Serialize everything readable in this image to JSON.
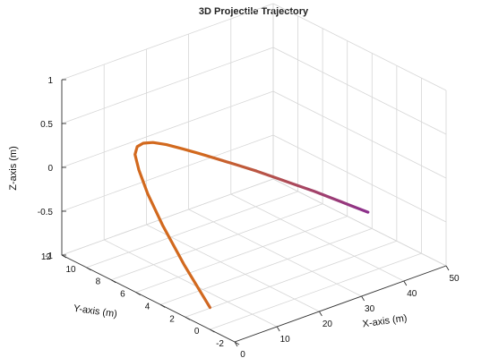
{
  "chart_data": {
    "type": "line3d",
    "title": "3D Projectile Trajectory",
    "xlabel": "X-axis (m)",
    "ylabel": "Y-axis (m)",
    "zlabel": "Z-axis (m)",
    "xlim": [
      0,
      50
    ],
    "ylim": [
      -2,
      12
    ],
    "zlim": [
      -1,
      1
    ],
    "xticks": [
      "0",
      "10",
      "20",
      "30",
      "40",
      "50"
    ],
    "yticks": [
      "-2",
      "0",
      "2",
      "4",
      "6",
      "8",
      "10",
      "12"
    ],
    "zticks": [
      "-1",
      "-0.5",
      "0",
      "0.5",
      "1"
    ],
    "grid": true,
    "series": [
      {
        "color_start": "#d2691e",
        "color_end": "#8b2f8f",
        "x": [
          0,
          2,
          4,
          6,
          8,
          10,
          12,
          14,
          16,
          18,
          20,
          22,
          24,
          26,
          28,
          30,
          32,
          34,
          36,
          38,
          40
        ],
        "y": [
          0,
          2.8,
          5.2,
          7.1,
          8.5,
          9.5,
          10.0,
          10.2,
          10.1,
          9.7,
          9.1,
          8.4,
          7.6,
          6.7,
          5.8,
          4.9,
          4.0,
          3.2,
          2.4,
          1.6,
          0.9
        ],
        "z": [
          -0.75,
          -0.49,
          -0.25,
          -0.06,
          0.08,
          0.15,
          0.17,
          0.16,
          0.14,
          0.11,
          0.07,
          0.03,
          -0.01,
          -0.05,
          -0.09,
          -0.14,
          -0.19,
          -0.24,
          -0.3,
          -0.36,
          -0.42
        ]
      }
    ]
  }
}
